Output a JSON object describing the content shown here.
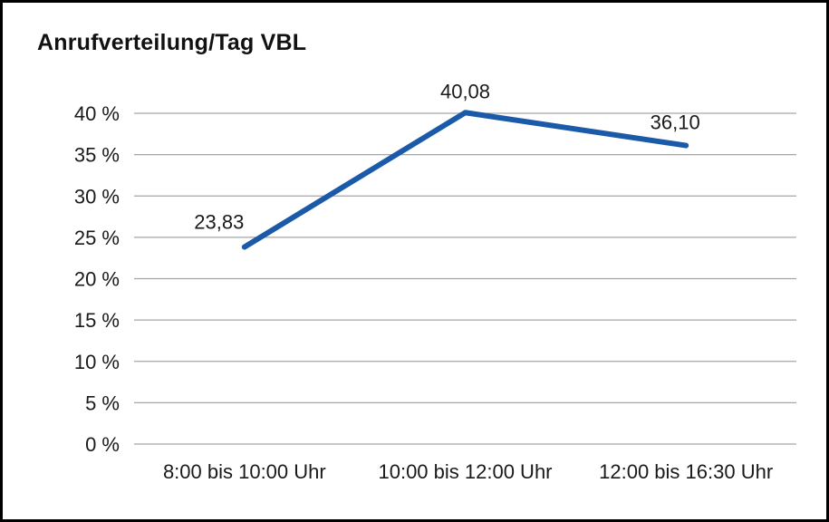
{
  "chart": {
    "line_color": "#1a5aa8",
    "grid_color": "#a6a6a6",
    "text_color": "#1a1a1a",
    "frame_border_color": "#000000",
    "background_color": "#ffffff"
  },
  "chart_data": {
    "type": "line",
    "title": "Anrufverteilung/Tag VBL",
    "categories": [
      "8:00 bis 10:00 Uhr",
      "10:00 bis 12:00 Uhr",
      "12:00 bis 16:30 Uhr"
    ],
    "values": [
      23.83,
      40.08,
      36.1
    ],
    "value_labels": [
      "23,83",
      "40,08",
      "36,10"
    ],
    "xlabel": "",
    "ylabel": "",
    "ylim": [
      0,
      40
    ],
    "ytick_step": 5,
    "ytick_labels": [
      "0 %",
      "5 %",
      "10 %",
      "15 %",
      "20 %",
      "25 %",
      "30 %",
      "35 %",
      "40 %"
    ],
    "ytick_suffix": " %",
    "grid": true,
    "legend": false,
    "series_name": "Anrufverteilung/Tag VBL"
  }
}
